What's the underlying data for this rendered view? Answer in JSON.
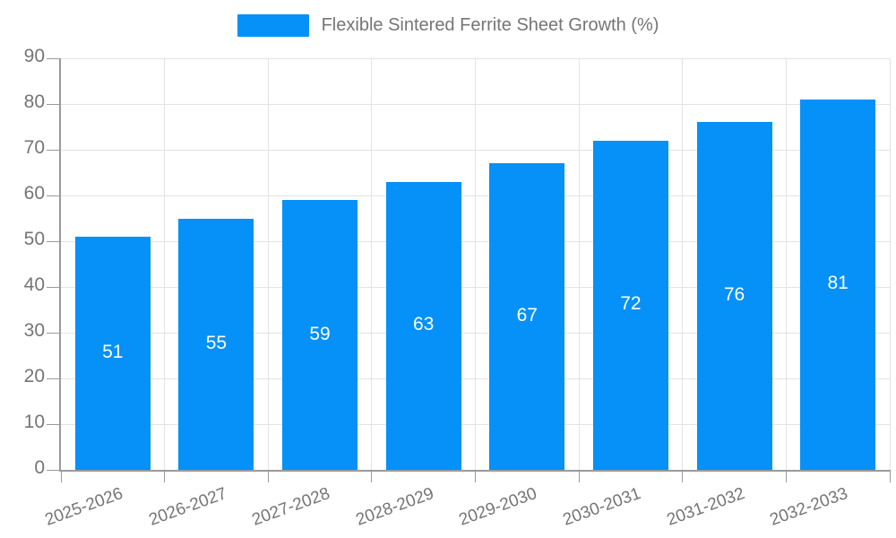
{
  "chart_data": {
    "type": "bar",
    "title": "",
    "legend": {
      "label": "Flexible Sintered Ferrite Sheet Growth (%)",
      "position": "top"
    },
    "categories": [
      "2025-2026",
      "2026-2027",
      "2027-2028",
      "2028-2029",
      "2029-2030",
      "2030-2031",
      "2031-2032",
      "2032-2033"
    ],
    "values": [
      51,
      55,
      59,
      63,
      67,
      72,
      76,
      81
    ],
    "xlabel": "",
    "ylabel": "",
    "ylim": [
      0,
      90
    ],
    "yticks": [
      0,
      10,
      20,
      30,
      40,
      50,
      60,
      70,
      80,
      90
    ],
    "grid": true,
    "value_labels": "inside-center",
    "colors": {
      "bar": "#0591F7",
      "text": "#757575",
      "grid": "#e3e3e3",
      "axis": "#9a9a9a",
      "value_label": "#ffffff"
    }
  }
}
